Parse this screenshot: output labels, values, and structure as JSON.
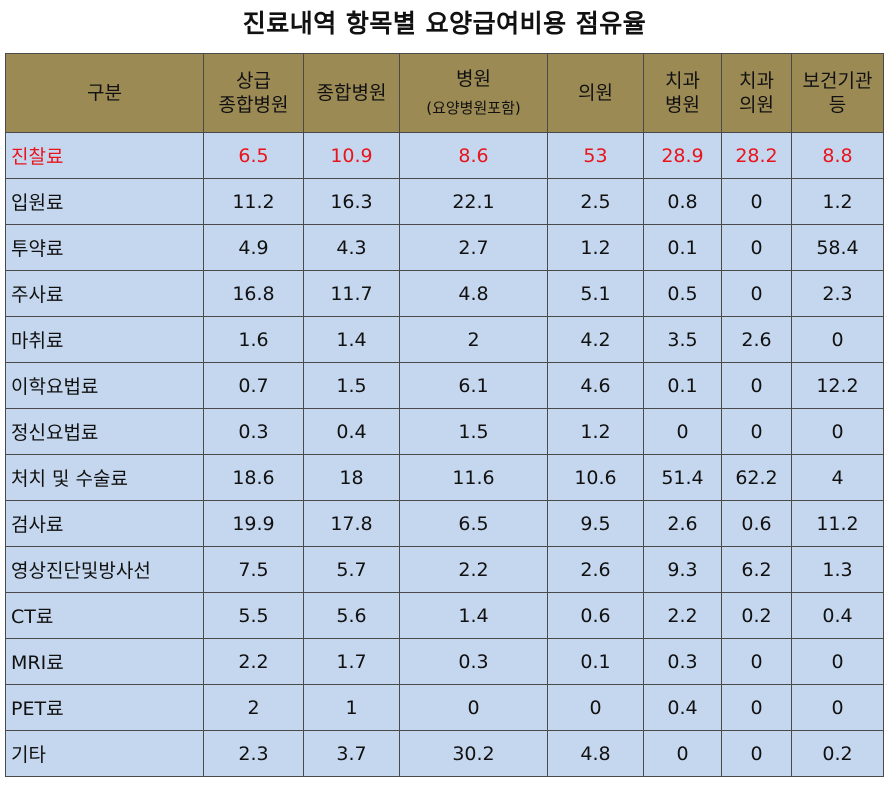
{
  "title": "진료내역 항목별 요양급여비용 점유율",
  "chart_data": {
    "type": "table",
    "title": "진료내역 항목별 요양급여비용 점유율",
    "highlight_color": "#e8141b",
    "header_color": "#9c8a55",
    "cell_color": "#c5d7ee",
    "columns": [
      {
        "lines": [
          "구분"
        ],
        "sub": ""
      },
      {
        "lines": [
          "상급",
          "종합병원"
        ],
        "sub": ""
      },
      {
        "lines": [
          "종합병원"
        ],
        "sub": ""
      },
      {
        "lines": [
          "병원"
        ],
        "sub": "(요양병원포함)"
      },
      {
        "lines": [
          "의원"
        ],
        "sub": ""
      },
      {
        "lines": [
          "치과",
          "병원"
        ],
        "sub": ""
      },
      {
        "lines": [
          "치과",
          "의원"
        ],
        "sub": ""
      },
      {
        "lines": [
          "보건기관",
          "등"
        ],
        "sub": ""
      }
    ],
    "rows": [
      {
        "label": "진찰료",
        "values": [
          "6.5",
          "10.9",
          "8.6",
          "53",
          "28.9",
          "28.2",
          "8.8"
        ],
        "highlight": true
      },
      {
        "label": "입원료",
        "values": [
          "11.2",
          "16.3",
          "22.1",
          "2.5",
          "0.8",
          "0",
          "1.2"
        ]
      },
      {
        "label": "투약료",
        "values": [
          "4.9",
          "4.3",
          "2.7",
          "1.2",
          "0.1",
          "0",
          "58.4"
        ]
      },
      {
        "label": "주사료",
        "values": [
          "16.8",
          "11.7",
          "4.8",
          "5.1",
          "0.5",
          "0",
          "2.3"
        ]
      },
      {
        "label": "마취료",
        "values": [
          "1.6",
          "1.4",
          "2",
          "4.2",
          "3.5",
          "2.6",
          "0"
        ]
      },
      {
        "label": "이학요법료",
        "values": [
          "0.7",
          "1.5",
          "6.1",
          "4.6",
          "0.1",
          "0",
          "12.2"
        ]
      },
      {
        "label": "정신요법료",
        "values": [
          "0.3",
          "0.4",
          "1.5",
          "1.2",
          "0",
          "0",
          "0"
        ]
      },
      {
        "label": "처치 및 수술료",
        "values": [
          "18.6",
          "18",
          "11.6",
          "10.6",
          "51.4",
          "62.2",
          "4"
        ]
      },
      {
        "label": "검사료",
        "values": [
          "19.9",
          "17.8",
          "6.5",
          "9.5",
          "2.6",
          "0.6",
          "11.2"
        ]
      },
      {
        "label": "영상진단및방사선",
        "values": [
          "7.5",
          "5.7",
          "2.2",
          "2.6",
          "9.3",
          "6.2",
          "1.3"
        ]
      },
      {
        "label": "CT료",
        "values": [
          "5.5",
          "5.6",
          "1.4",
          "0.6",
          "2.2",
          "0.2",
          "0.4"
        ]
      },
      {
        "label": "MRI료",
        "values": [
          "2.2",
          "1.7",
          "0.3",
          "0.1",
          "0.3",
          "0",
          "0"
        ]
      },
      {
        "label": "PET료",
        "values": [
          "2",
          "1",
          "0",
          "0",
          "0.4",
          "0",
          "0"
        ]
      },
      {
        "label": "기타",
        "values": [
          "2.3",
          "3.7",
          "30.2",
          "4.8",
          "0",
          "0",
          "0.2"
        ]
      }
    ]
  }
}
